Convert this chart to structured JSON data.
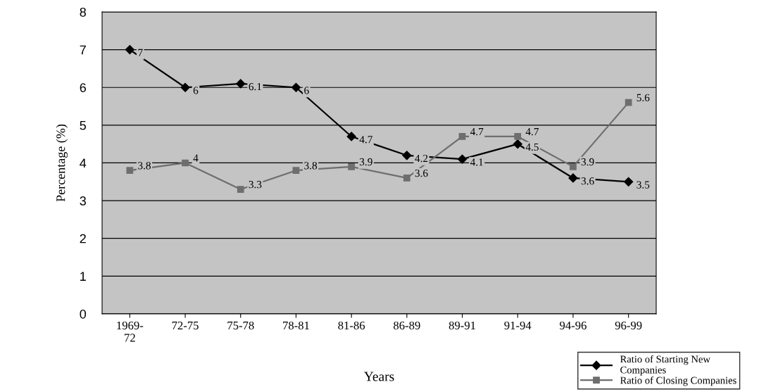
{
  "chart_data": {
    "type": "line",
    "xlabel": "Years",
    "ylabel": "Percentage (%)",
    "categories": [
      "1969-\n72",
      "72-75",
      "75-78",
      "78-81",
      "81-86",
      "86-89",
      "89-91",
      "91-94",
      "94-96",
      "96-99"
    ],
    "series": [
      {
        "name": "Ratio of Starting New\nCompanies",
        "color": "#000000",
        "marker": "diamond",
        "values": [
          7,
          6,
          6.1,
          6,
          4.7,
          4.2,
          4.1,
          4.5,
          3.6,
          3.5
        ]
      },
      {
        "name": "Ratio of Closing Companies",
        "color": "#6e6e6e",
        "marker": "square",
        "values": [
          3.8,
          4,
          3.3,
          3.8,
          3.9,
          3.6,
          4.7,
          4.7,
          3.9,
          5.6
        ]
      }
    ],
    "ylim": [
      0,
      8
    ],
    "yticks": [
      0,
      1,
      2,
      3,
      4,
      5,
      6,
      7,
      8
    ],
    "grid": "y",
    "legend": "bottom right",
    "data_labels": true
  }
}
